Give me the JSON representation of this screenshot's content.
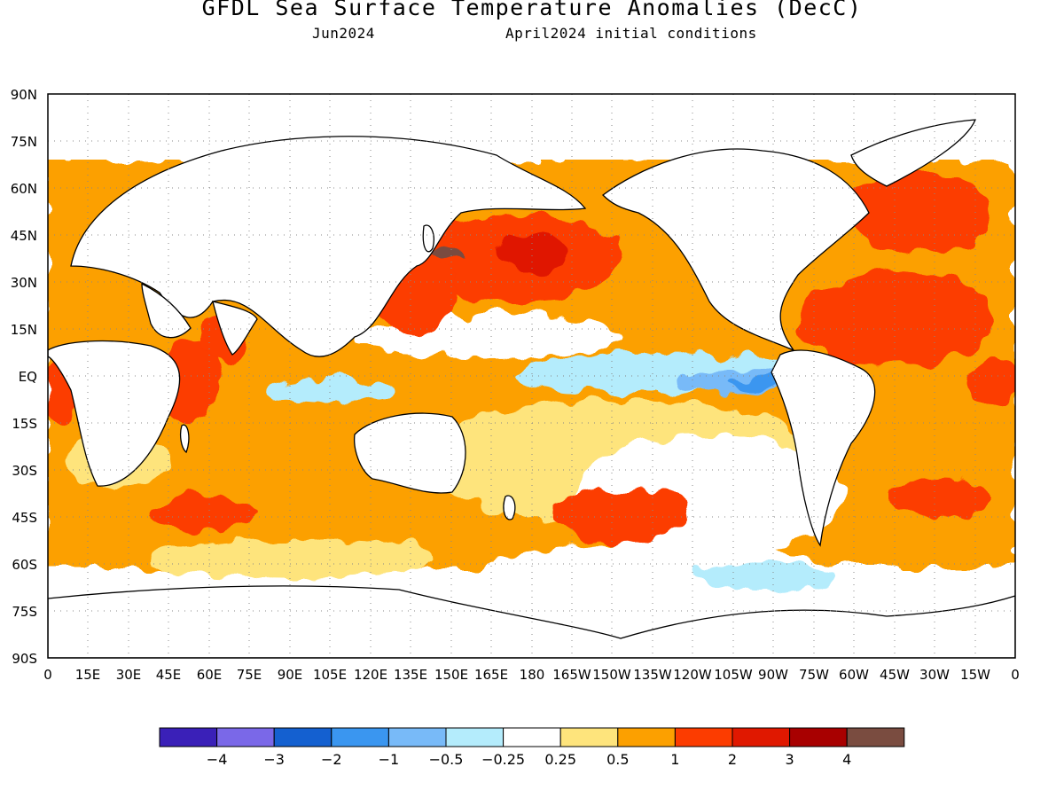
{
  "title": "GFDL Sea Surface Temperature Anomalies (DecC)",
  "subtitle_left": "Jun2024",
  "subtitle_right": "April2024 initial conditions",
  "lat_labels": [
    "90N",
    "75N",
    "60N",
    "45N",
    "30N",
    "15N",
    "EQ",
    "15S",
    "30S",
    "45S",
    "60S",
    "75S",
    "90S"
  ],
  "lon_labels": [
    "0",
    "15E",
    "30E",
    "45E",
    "60E",
    "75E",
    "90E",
    "105E",
    "120E",
    "135E",
    "150E",
    "165E",
    "180",
    "165W",
    "150W",
    "135W",
    "120W",
    "105W",
    "90W",
    "75W",
    "60W",
    "45W",
    "30W",
    "15W",
    "0"
  ],
  "colorbar": {
    "colors": [
      "#3a20b8",
      "#7a68e8",
      "#1460d0",
      "#3a96f0",
      "#78baf8",
      "#b4ecfc",
      "#ffffff",
      "#fee47c",
      "#fca000",
      "#fc3c00",
      "#e01800",
      "#a80000",
      "#7a4c40"
    ],
    "labels": [
      "-4",
      "-3",
      "-2",
      "-1",
      "-0.5",
      "-0.25",
      "0.25",
      "0.5",
      "1",
      "2",
      "3",
      "4"
    ]
  }
}
